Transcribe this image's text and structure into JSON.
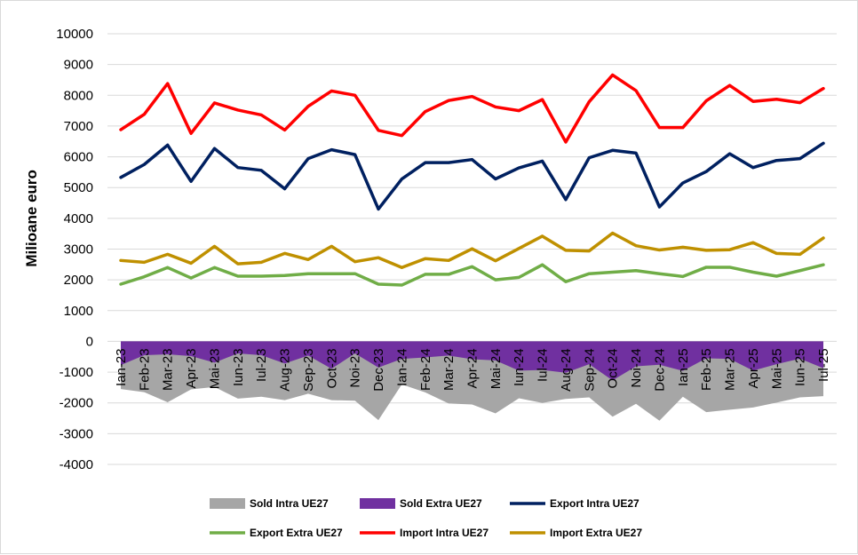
{
  "chart_data": {
    "type": "line",
    "ylabel": "Milioane euro",
    "xlabel": "",
    "ylim": [
      -4000,
      10000
    ],
    "yticks": [
      -4000,
      -3000,
      -2000,
      -1000,
      0,
      1000,
      2000,
      3000,
      4000,
      5000,
      6000,
      7000,
      8000,
      9000,
      10000
    ],
    "grid": true,
    "legend_position": "bottom",
    "categories": [
      "Ian-23",
      "Feb-23",
      "Mar-23",
      "Apr-23",
      "Mai-23",
      "Iun-23",
      "Iul-23",
      "Aug-23",
      "Sep-23",
      "Oct-23",
      "Noi-23",
      "Dec-23",
      "Ian-24",
      "Feb-24",
      "Mar-24",
      "Apr-24",
      "Mai-24",
      "Iun-24",
      "Iul-24",
      "Aug-24",
      "Sep-24",
      "Oct-24",
      "Noi-24",
      "Dec-24",
      "Ian-25",
      "Feb-25",
      "Mar-25",
      "Apr-25",
      "Mai-25",
      "Iun-25",
      "Iul-25"
    ],
    "series": [
      {
        "name": "Sold Intra UE27",
        "kind": "area",
        "color": "#a6a6a6",
        "values": [
          -1550,
          -1650,
          -1980,
          -1560,
          -1480,
          -1860,
          -1800,
          -1910,
          -1700,
          -1910,
          -1930,
          -2560,
          -1400,
          -1660,
          -2020,
          -2050,
          -2340,
          -1850,
          -2000,
          -1870,
          -1820,
          -2450,
          -2030,
          -2580,
          -1800,
          -2300,
          -2220,
          -2150,
          -1990,
          -1820,
          -1780
        ]
      },
      {
        "name": "Sold Extra UE27",
        "kind": "area",
        "color": "#7030a0",
        "values": [
          -770,
          -450,
          -420,
          -480,
          -690,
          -390,
          -450,
          -720,
          -460,
          -890,
          -390,
          -850,
          -570,
          -520,
          -460,
          -580,
          -620,
          -950,
          -930,
          -1020,
          -740,
          -1270,
          -810,
          -760,
          -960,
          -550,
          -570,
          -950,
          -740,
          -560,
          -870
        ]
      },
      {
        "name": "Export Intra UE27",
        "kind": "line",
        "color": "#002060",
        "values": [
          5330,
          5750,
          6380,
          5200,
          6270,
          5650,
          5560,
          4960,
          5940,
          6230,
          6070,
          4300,
          5280,
          5810,
          5810,
          5910,
          5280,
          5640,
          5860,
          4610,
          5970,
          6210,
          6120,
          4370,
          5150,
          5520,
          6100,
          5650,
          5880,
          5940,
          6440
        ]
      },
      {
        "name": "Export Extra UE27",
        "kind": "line",
        "color": "#70ad47",
        "values": [
          1860,
          2100,
          2400,
          2060,
          2400,
          2120,
          2120,
          2140,
          2200,
          2200,
          2200,
          1860,
          1830,
          2180,
          2180,
          2430,
          2000,
          2080,
          2490,
          1940,
          2200,
          2250,
          2300,
          2200,
          2110,
          2410,
          2410,
          2250,
          2120,
          2300,
          2490
        ]
      },
      {
        "name": "Import Intra UE27",
        "kind": "line",
        "color": "#ff0000",
        "values": [
          6880,
          7380,
          8380,
          6760,
          7750,
          7520,
          7360,
          6870,
          7640,
          8140,
          8000,
          6860,
          6690,
          7470,
          7830,
          7960,
          7620,
          7500,
          7860,
          6480,
          7790,
          8660,
          8150,
          6950,
          6950,
          7820,
          8320,
          7800,
          7870,
          7760,
          8220
        ]
      },
      {
        "name": "Import Extra UE27",
        "kind": "line",
        "color": "#bf9000",
        "values": [
          2630,
          2570,
          2830,
          2540,
          3090,
          2520,
          2570,
          2860,
          2660,
          3090,
          2590,
          2720,
          2400,
          2690,
          2630,
          3010,
          2620,
          3020,
          3420,
          2960,
          2940,
          3520,
          3110,
          2970,
          3060,
          2960,
          2980,
          3210,
          2860,
          2830,
          3360
        ]
      }
    ]
  }
}
